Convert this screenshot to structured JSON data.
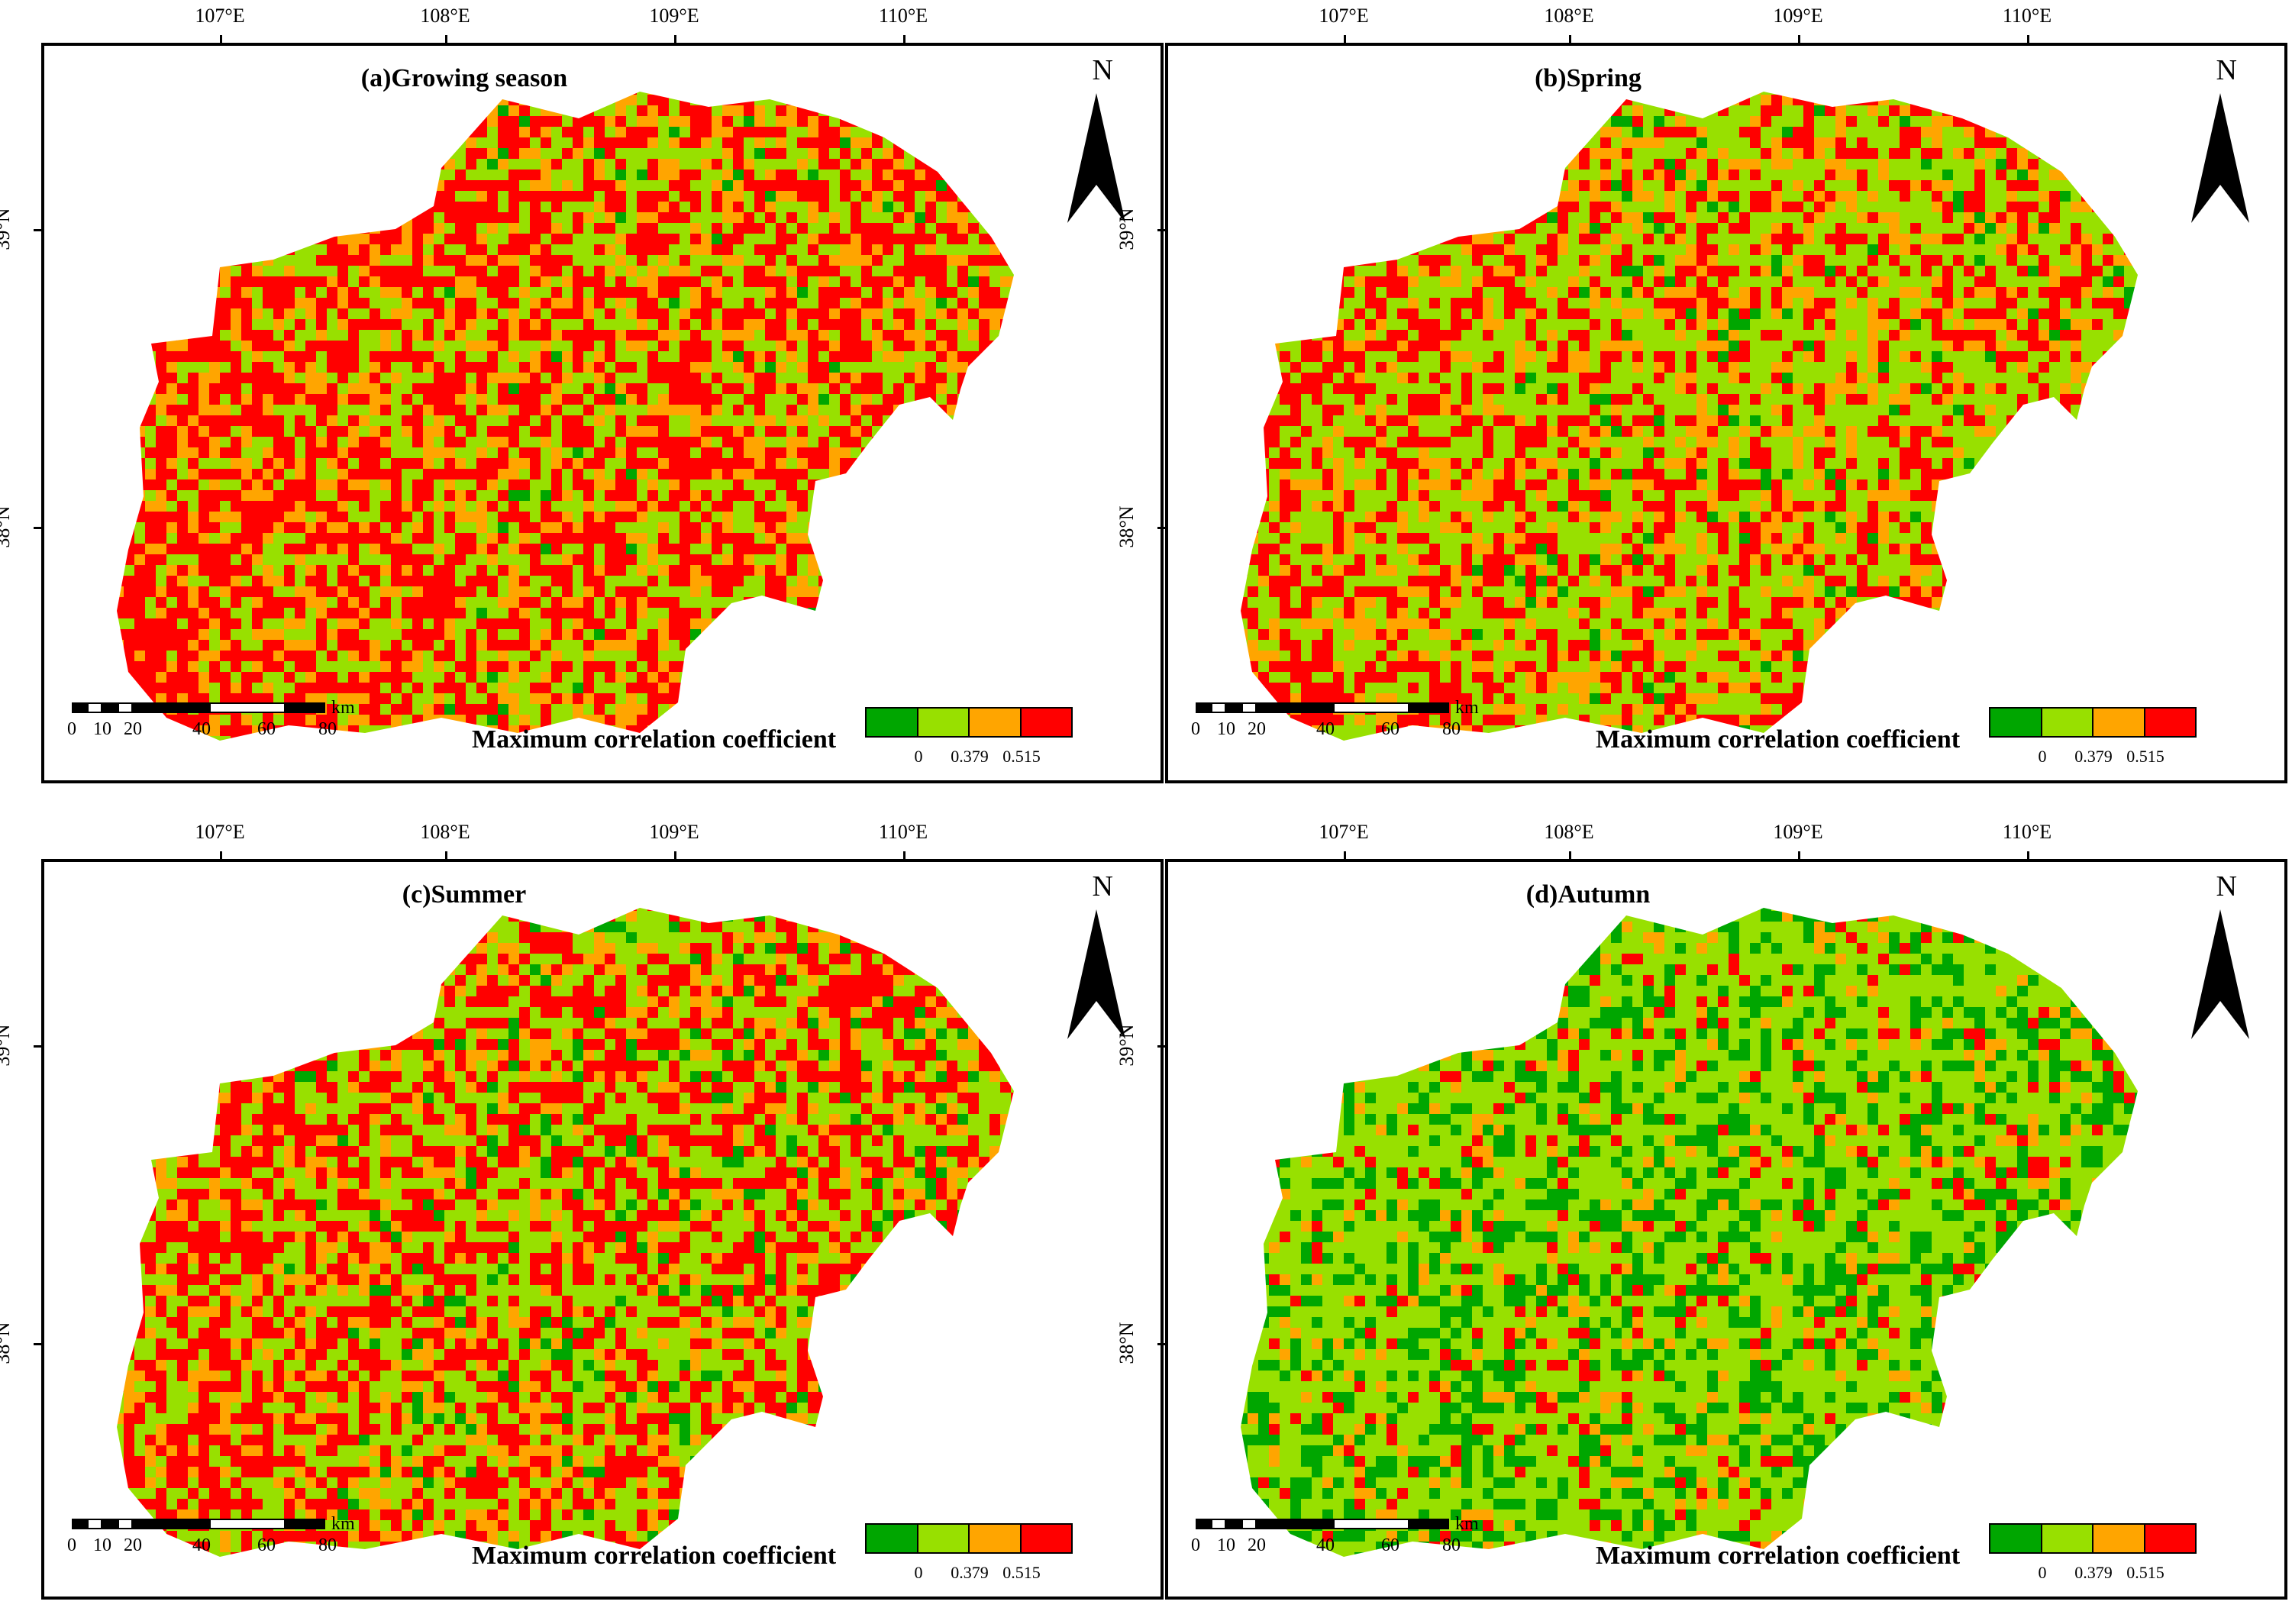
{
  "map_data": {
    "type": "choropleth-multipanel",
    "lon_ticks": [
      "107°E",
      "108°E",
      "109°E",
      "110°E"
    ],
    "lat_ticks": [
      "39°N",
      "38°N"
    ],
    "north_label": "N",
    "scale": {
      "unit": "km",
      "labels": [
        "0",
        "10",
        "20",
        "40",
        "60",
        "80"
      ]
    },
    "legend": {
      "title": "Maximum correlation coefficient",
      "colors": [
        "#00a600",
        "#98e000",
        "#ffa500",
        "#ff0000"
      ],
      "tick_labels": [
        "0",
        "0.379",
        "0.515"
      ]
    },
    "panels": [
      {
        "title": "(a)Growing season",
        "fraction": {
          "dark_green": 0.02,
          "light_green": 0.33,
          "orange": 0.2,
          "red": 0.45
        }
      },
      {
        "title": "(b)Spring",
        "fraction": {
          "dark_green": 0.05,
          "light_green": 0.47,
          "orange": 0.18,
          "red": 0.3
        }
      },
      {
        "title": "(c)Summer",
        "fraction": {
          "dark_green": 0.08,
          "light_green": 0.4,
          "orange": 0.15,
          "red": 0.37
        }
      },
      {
        "title": "(d)Autumn",
        "fraction": {
          "dark_green": 0.28,
          "light_green": 0.55,
          "orange": 0.08,
          "red": 0.09
        }
      }
    ]
  }
}
